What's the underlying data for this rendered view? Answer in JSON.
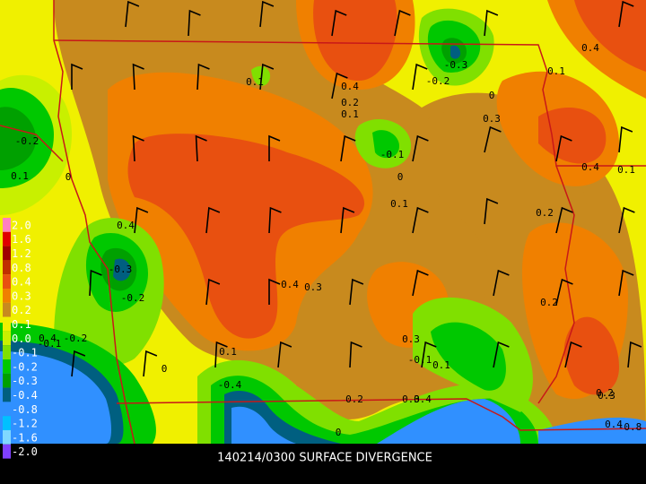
{
  "caption": "140214/0300 SURFACE DIVERGENCE",
  "legend": [
    {
      "label": "2.0",
      "color": "#ff80c0"
    },
    {
      "label": "1.6",
      "color": "#e00000"
    },
    {
      "label": "1.2",
      "color": "#a00000"
    },
    {
      "label": "0.8",
      "color": "#c03000"
    },
    {
      "label": "0.4",
      "color": "#e85010"
    },
    {
      "label": "0.3",
      "color": "#f08000"
    },
    {
      "label": "0.2",
      "color": "#c88a1e"
    },
    {
      "label": "0.1",
      "color": "#f0f000"
    },
    {
      "label": "0.0",
      "color": "#c8f000"
    },
    {
      "label": "-0.1",
      "color": "#80e000"
    },
    {
      "label": "-0.2",
      "color": "#00c800"
    },
    {
      "label": "-0.3",
      "color": "#00a000"
    },
    {
      "label": "-0.4",
      "color": "#005f80"
    },
    {
      "label": "-0.8",
      "color": "#3090ff"
    },
    {
      "label": "-1.2",
      "color": "#00c0ff"
    },
    {
      "label": "-1.6",
      "color": "#80d8ff"
    },
    {
      "label": "-2.0",
      "color": "#8040ff"
    }
  ],
  "contour_labels": [
    "0.4",
    "0.2",
    "0.1",
    "0",
    "-0.3",
    "-0.2",
    "0.1",
    "-0.2",
    "0.1",
    "0",
    "-0.1",
    "0.1",
    "0",
    "0.3",
    "0.4",
    "0.1",
    "0.4",
    "0.1",
    "0.2",
    "0.4",
    "0.3",
    "0.2",
    "-0.3",
    "-0.2",
    "0.3",
    "0.4",
    "-0.2",
    "0.1",
    "0",
    "-0.1",
    "0.2",
    "0.3",
    "-0.4",
    "0.4",
    "-0.1",
    "0.1",
    "0.2",
    "0",
    "0.4",
    "0.3",
    "0.4",
    "-0.8"
  ]
}
